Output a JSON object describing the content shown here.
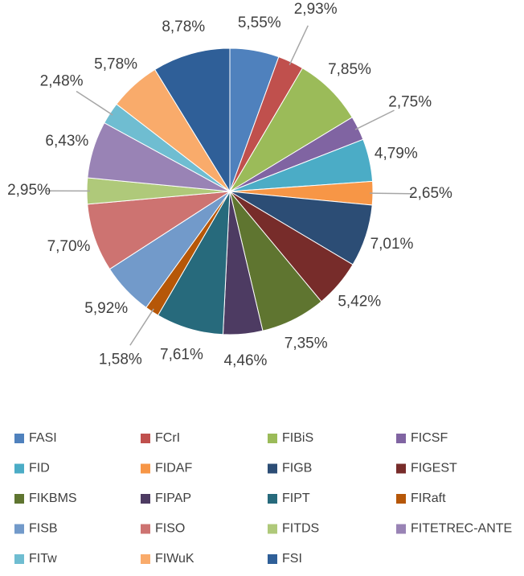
{
  "chart_data": {
    "type": "pie",
    "categories": [
      "FASI",
      "FCrI",
      "FIBiS",
      "FICSF",
      "FID",
      "FIDAF",
      "FIGB",
      "FIGEST",
      "FIKBMS",
      "FIPAP",
      "FIPT",
      "FIRaft",
      "FISB",
      "FISO",
      "FITDS",
      "FITETREC-ANTE",
      "FITw",
      "FIWuK",
      "FSI"
    ],
    "values": [
      5.55,
      2.93,
      7.85,
      2.75,
      4.79,
      2.65,
      7.01,
      5.42,
      7.35,
      4.46,
      7.61,
      1.58,
      5.92,
      7.7,
      2.95,
      6.43,
      2.48,
      5.78,
      8.78
    ],
    "value_labels": [
      "5,55%",
      "2,93%",
      "7,85%",
      "2,75%",
      "4,79%",
      "2,65%",
      "7,01%",
      "5,42%",
      "7,35%",
      "4,46%",
      "7,61%",
      "1,58%",
      "5,92%",
      "7,70%",
      "2,95%",
      "6,43%",
      "2,48%",
      "5,78%",
      "8,78%"
    ],
    "colors": [
      "#4f81bd",
      "#c0504d",
      "#9bbb59",
      "#8064a2",
      "#4bacc6",
      "#f79646",
      "#2c4d75",
      "#772c2a",
      "#5f7530",
      "#4d3b62",
      "#276a7c",
      "#b65708",
      "#729aca",
      "#cd7371",
      "#afc97a",
      "#9983b5",
      "#6fbdd1",
      "#f9ab6b",
      "#2f5f98"
    ],
    "legend": "bottom"
  }
}
